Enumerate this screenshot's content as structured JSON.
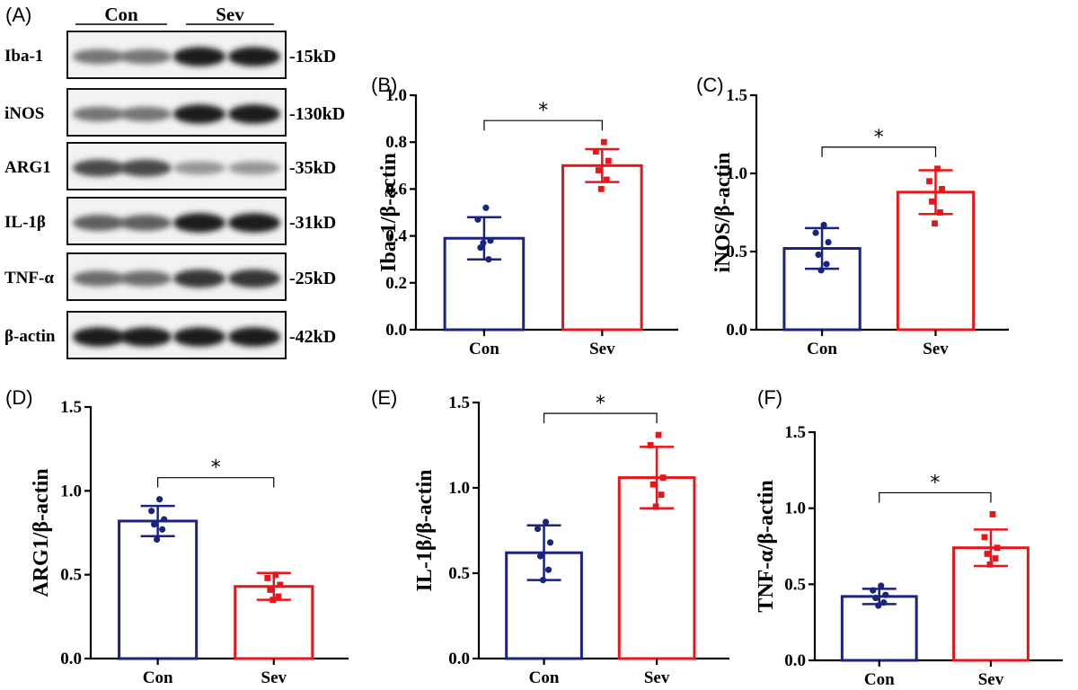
{
  "blot": {
    "label": "(A)",
    "groups": [
      "Con",
      "Sev"
    ],
    "rows": [
      {
        "name": "Iba-1",
        "size": "-15kD",
        "intensity": [
          0.55,
          0.55,
          0.95,
          0.95
        ]
      },
      {
        "name": "iNOS",
        "size": "-130kD",
        "intensity": [
          0.55,
          0.55,
          0.95,
          0.95
        ]
      },
      {
        "name": "ARG1",
        "size": "-35kD",
        "intensity": [
          0.75,
          0.75,
          0.4,
          0.4
        ]
      },
      {
        "name": "IL-1β",
        "size": "-31kD",
        "intensity": [
          0.65,
          0.65,
          0.95,
          0.95
        ]
      },
      {
        "name": "TNF-α",
        "size": "-25kD",
        "intensity": [
          0.6,
          0.6,
          0.85,
          0.85
        ]
      },
      {
        "name": "β-actin",
        "size": "-42kD",
        "intensity": [
          0.95,
          0.95,
          0.95,
          0.95
        ]
      }
    ]
  },
  "chart_data": [
    {
      "panel": "(B)",
      "type": "bar",
      "ylabel": "Iba-1/β-actin",
      "categories": [
        "Con",
        "Sev"
      ],
      "ylim": [
        0,
        1.0
      ],
      "yticks": [
        "0.0",
        "0.2",
        "0.4",
        "0.6",
        "0.8",
        "1.0"
      ],
      "values": [
        0.39,
        0.7
      ],
      "errors": [
        0.09,
        0.07
      ],
      "points": [
        [
          0.52,
          0.47,
          0.38,
          0.35,
          0.3,
          0.37
        ],
        [
          0.8,
          0.76,
          0.72,
          0.68,
          0.64,
          0.6
        ]
      ],
      "colors": [
        "#1a237e",
        "#e8161b"
      ],
      "significance": "*"
    },
    {
      "panel": "(C)",
      "type": "bar",
      "ylabel": "iNOS/β-actin",
      "categories": [
        "Con",
        "Sev"
      ],
      "ylim": [
        0,
        1.5
      ],
      "yticks": [
        "0.0",
        "0.5",
        "1.0",
        "1.5"
      ],
      "values": [
        0.52,
        0.88
      ],
      "errors": [
        0.13,
        0.14
      ],
      "points": [
        [
          0.67,
          0.62,
          0.56,
          0.48,
          0.42,
          0.38
        ],
        [
          1.03,
          0.95,
          0.9,
          0.82,
          0.75,
          0.68
        ]
      ],
      "colors": [
        "#1a237e",
        "#e8161b"
      ],
      "significance": "*"
    },
    {
      "panel": "(D)",
      "type": "bar",
      "ylabel": "ARG1/β-actin",
      "categories": [
        "Con",
        "Sev"
      ],
      "ylim": [
        0,
        1.5
      ],
      "yticks": [
        "0.0",
        "0.5",
        "1.0",
        "1.5"
      ],
      "values": [
        0.82,
        0.43
      ],
      "errors": [
        0.09,
        0.08
      ],
      "points": [
        [
          0.95,
          0.88,
          0.83,
          0.8,
          0.77,
          0.71
        ],
        [
          0.5,
          0.48,
          0.44,
          0.41,
          0.37,
          0.35
        ]
      ],
      "colors": [
        "#1a237e",
        "#e8161b"
      ],
      "significance": "*"
    },
    {
      "panel": "(E)",
      "type": "bar",
      "ylabel": "IL-1β/β-actin",
      "categories": [
        "Con",
        "Sev"
      ],
      "ylim": [
        0,
        1.5
      ],
      "yticks": [
        "0.0",
        "0.5",
        "1.0",
        "1.5"
      ],
      "values": [
        0.62,
        1.06
      ],
      "errors": [
        0.16,
        0.18
      ],
      "points": [
        [
          0.8,
          0.76,
          0.68,
          0.6,
          0.52,
          0.46
        ],
        [
          1.31,
          1.25,
          1.06,
          1.02,
          0.96,
          0.89
        ]
      ],
      "colors": [
        "#1a237e",
        "#e8161b"
      ],
      "significance": "*"
    },
    {
      "panel": "(F)",
      "type": "bar",
      "ylabel": "TNF-α/β-actin",
      "categories": [
        "Con",
        "Sev"
      ],
      "ylim": [
        0,
        1.5
      ],
      "yticks": [
        "0.0",
        "0.5",
        "1.0",
        "1.5"
      ],
      "values": [
        0.42,
        0.74
      ],
      "errors": [
        0.05,
        0.12
      ],
      "points": [
        [
          0.49,
          0.46,
          0.43,
          0.41,
          0.38,
          0.36
        ],
        [
          0.96,
          0.81,
          0.74,
          0.7,
          0.67,
          0.63
        ]
      ],
      "colors": [
        "#1a237e",
        "#e8161b"
      ],
      "significance": "*"
    }
  ]
}
